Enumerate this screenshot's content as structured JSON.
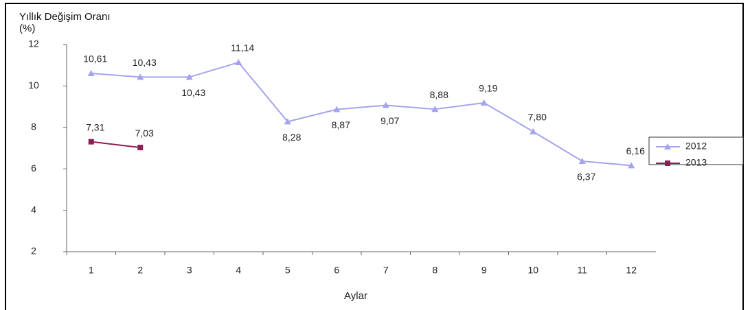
{
  "chart_data": {
    "type": "line",
    "y_label": "Yıllık Değişim Oranı (%)",
    "x_label": "Aylar",
    "categories": [
      "1",
      "2",
      "3",
      "4",
      "5",
      "6",
      "7",
      "8",
      "9",
      "10",
      "11",
      "12"
    ],
    "series": [
      {
        "name": "2012",
        "color": "#a3a3ee",
        "marker": "triangle",
        "values": [
          10.61,
          10.43,
          10.43,
          11.14,
          8.28,
          8.87,
          9.07,
          8.88,
          9.19,
          7.8,
          6.37,
          6.16
        ],
        "value_labels": [
          "10,61",
          "10,43",
          "10,43",
          "11,14",
          "8,28",
          "8,87",
          "9,07",
          "8,88",
          "9,19",
          "7,80",
          "6,37",
          "6,16"
        ]
      },
      {
        "name": "2013",
        "color": "#8e1f52",
        "marker": "square",
        "values": [
          7.31,
          7.03,
          null,
          null,
          null,
          null,
          null,
          null,
          null,
          null,
          null,
          null
        ],
        "value_labels": [
          "7,31",
          "7,03",
          null,
          null,
          null,
          null,
          null,
          null,
          null,
          null,
          null,
          null
        ]
      }
    ],
    "ylim": [
      2,
      12
    ],
    "yticks": [
      2,
      4,
      6,
      8,
      10,
      12
    ],
    "grid": false,
    "legend": "right"
  }
}
